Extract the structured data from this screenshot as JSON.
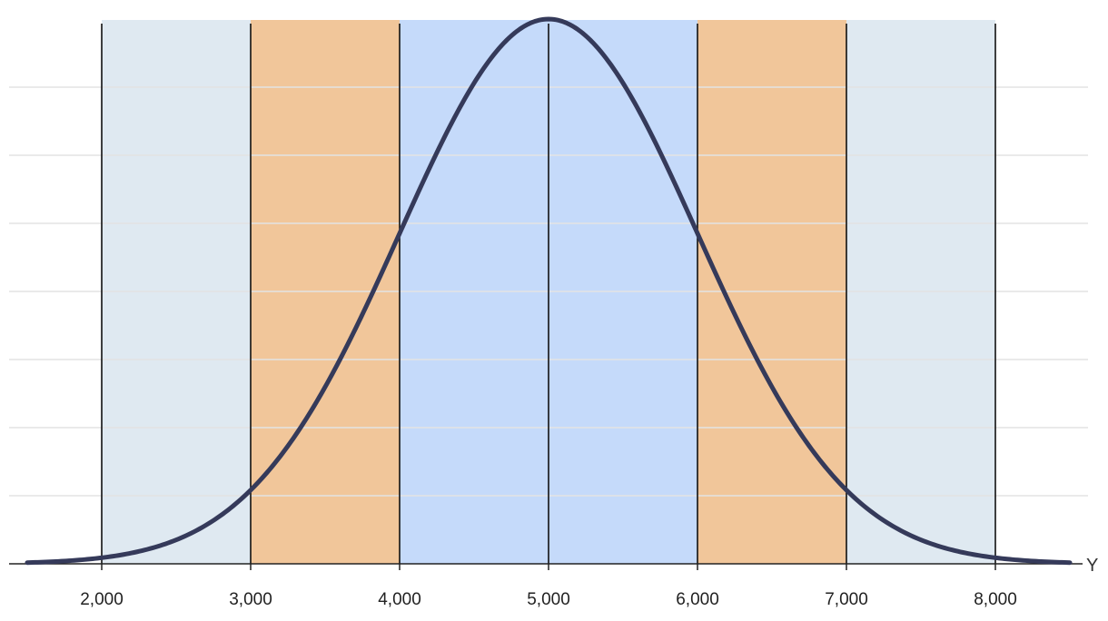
{
  "chart_data": {
    "type": "area",
    "title": "",
    "xlabel": "Y",
    "ylabel": "",
    "xlim": [
      1500,
      8500
    ],
    "curve": {
      "distribution": "normal",
      "mean": 5000,
      "sd": 1000,
      "color": "#353a5a"
    },
    "x_ticks": [
      2000,
      3000,
      4000,
      5000,
      6000,
      7000,
      8000
    ],
    "x_tick_labels": [
      "2,000",
      "3,000",
      "4,000",
      "5,000",
      "6,000",
      "7,000",
      "8,000"
    ],
    "bands": [
      {
        "from": 2000,
        "to": 3000,
        "color": "#dfe9f1"
      },
      {
        "from": 3000,
        "to": 4000,
        "color": "#f1c69a"
      },
      {
        "from": 4000,
        "to": 6000,
        "color": "#c5dafa"
      },
      {
        "from": 6000,
        "to": 7000,
        "color": "#f1c69a"
      },
      {
        "from": 7000,
        "to": 8000,
        "color": "#dfe9f1"
      }
    ],
    "grid": true,
    "legend": "none"
  },
  "colors": {
    "background": "#ffffff",
    "gridline": "#e3e3e3",
    "axis": "#222222",
    "band_divider": "#111111"
  }
}
